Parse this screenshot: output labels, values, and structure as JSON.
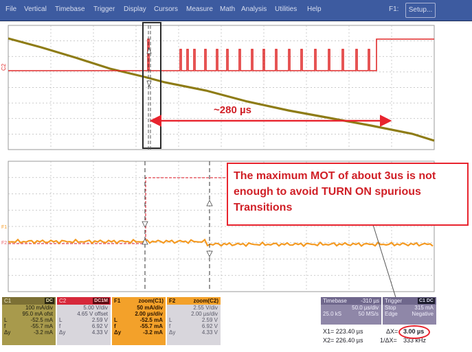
{
  "menu": {
    "items": [
      "File",
      "Vertical",
      "Timebase",
      "Trigger",
      "Display",
      "Cursors",
      "Measure",
      "Math",
      "Analysis",
      "Utilities",
      "Help"
    ],
    "f1": "F1:",
    "setup": "Setup..."
  },
  "traces": {
    "c2_marker": "C2",
    "f1_marker": "F1",
    "f2_marker": "F2"
  },
  "annotations": {
    "duration_label": "~280 µs",
    "callout_lines": [
      "The maximum MOT of about 3us is not",
      "enough to avoid  TURN ON spurious",
      "Transitions"
    ]
  },
  "panels": {
    "c1": {
      "name": "C1",
      "tag": "DC",
      "rows": [
        {
          "k": "",
          "v": "100 mA/div"
        },
        {
          "k": "",
          "v": "95.0 mA ofst"
        },
        {
          "k": "L",
          "v": "-52.5 mA"
        },
        {
          "k": "f",
          "v": "-55.7 mA"
        },
        {
          "k": "Δy",
          "v": "-3.2 mA"
        }
      ]
    },
    "c2": {
      "name": "C2",
      "tag": "DC1M",
      "rows": [
        {
          "k": "",
          "v": "5.00 V/div"
        },
        {
          "k": "",
          "v": "4.65 V offset"
        },
        {
          "k": "L",
          "v": "2.59 V"
        },
        {
          "k": "f",
          "v": "6.92 V"
        },
        {
          "k": "Δy",
          "v": "4.33 V"
        }
      ]
    },
    "f1": {
      "name": "F1",
      "tag": "zoom(C1)",
      "rows": [
        {
          "k": "",
          "v": "50 mA/div"
        },
        {
          "k": "",
          "v": "2.00 µs/div"
        },
        {
          "k": "L",
          "v": "-52.5 mA"
        },
        {
          "k": "f",
          "v": "-55.7 mA"
        },
        {
          "k": "Δy",
          "v": "-3.2 mA"
        }
      ]
    },
    "f2": {
      "name": "F2",
      "tag": "zoom(C2)",
      "rows": [
        {
          "k": "",
          "v": "2.55 V/div"
        },
        {
          "k": "",
          "v": "2.00 µs/div"
        },
        {
          "k": "L",
          "v": "2.59 V"
        },
        {
          "k": "f",
          "v": "6.92 V"
        },
        {
          "k": "Δy",
          "v": "4.33 V"
        }
      ]
    },
    "timebase": {
      "name": "Timebase",
      "delay": "-310 µs",
      "rows": [
        {
          "k": "",
          "v": "50.0 µs/div"
        },
        {
          "k": "25.0 kS",
          "v": "50 MS/s"
        }
      ]
    },
    "trigger": {
      "name": "Trigger",
      "tag": "C1 DC",
      "rows": [
        {
          "k": "Stop",
          "v": "315 mA"
        },
        {
          "k": "Edge",
          "v": "Negative"
        }
      ]
    }
  },
  "cursors": {
    "x1": "X1=  223.40 µs",
    "x2": "X2=  226.40 µs",
    "dx_label": "ΔX=",
    "dx": "3.00 µs",
    "inv_dx_label": "1/ΔX=",
    "inv_dx": "333 kHz"
  },
  "colors": {
    "grid_bg": "#ffffff",
    "c1_trace": "#8e7c16",
    "c2_trace": "#e02a2a",
    "f1_trace": "#f49a22",
    "f2_trace": "#e8606a",
    "annotation": "#e8242e"
  }
}
